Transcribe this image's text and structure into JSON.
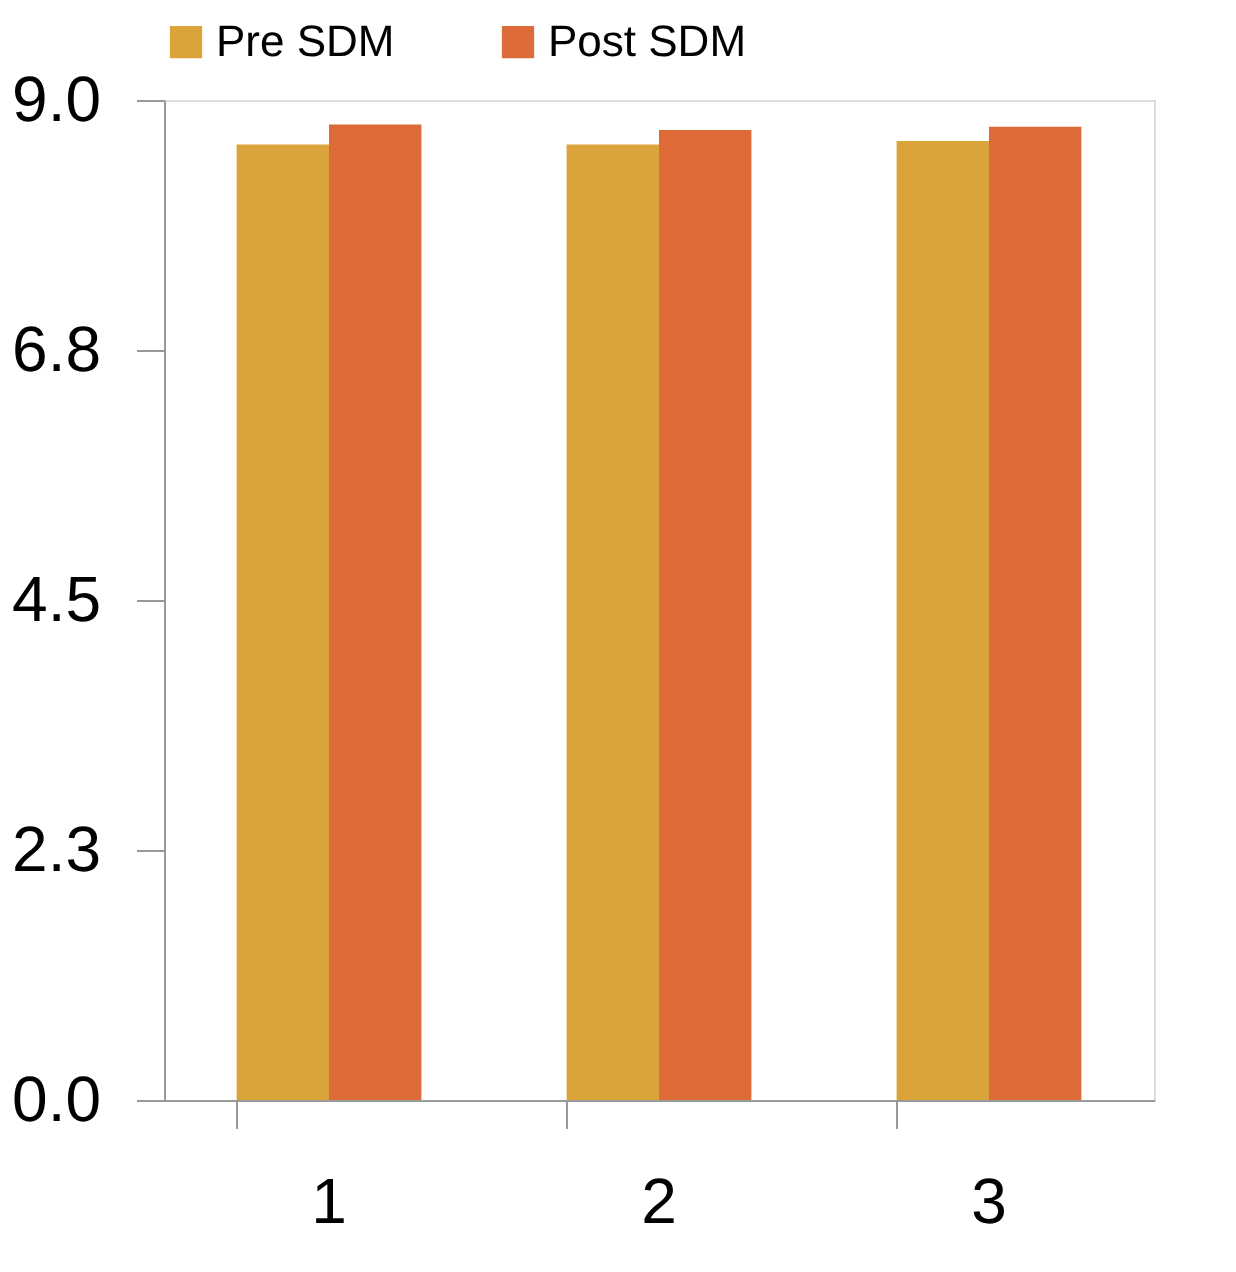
{
  "chart_data": {
    "type": "bar",
    "categories": [
      "1",
      "2",
      "3"
    ],
    "series": [
      {
        "name": "Pre SDM",
        "color": "#dba43a",
        "values": [
          8.6,
          8.6,
          8.63
        ]
      },
      {
        "name": "Post SDM",
        "color": "#dd6b37",
        "values": [
          8.78,
          8.73,
          8.76
        ]
      }
    ],
    "ylim": [
      0,
      9
    ],
    "yticks": [
      {
        "value": 0,
        "label": "0.0"
      },
      {
        "value": 2.25,
        "label": "2.3"
      },
      4.5,
      {
        "value": 6.75,
        "label": "6.8"
      },
      {
        "value": 9,
        "label": "9.0"
      }
    ],
    "grid": false,
    "legend": "top"
  }
}
